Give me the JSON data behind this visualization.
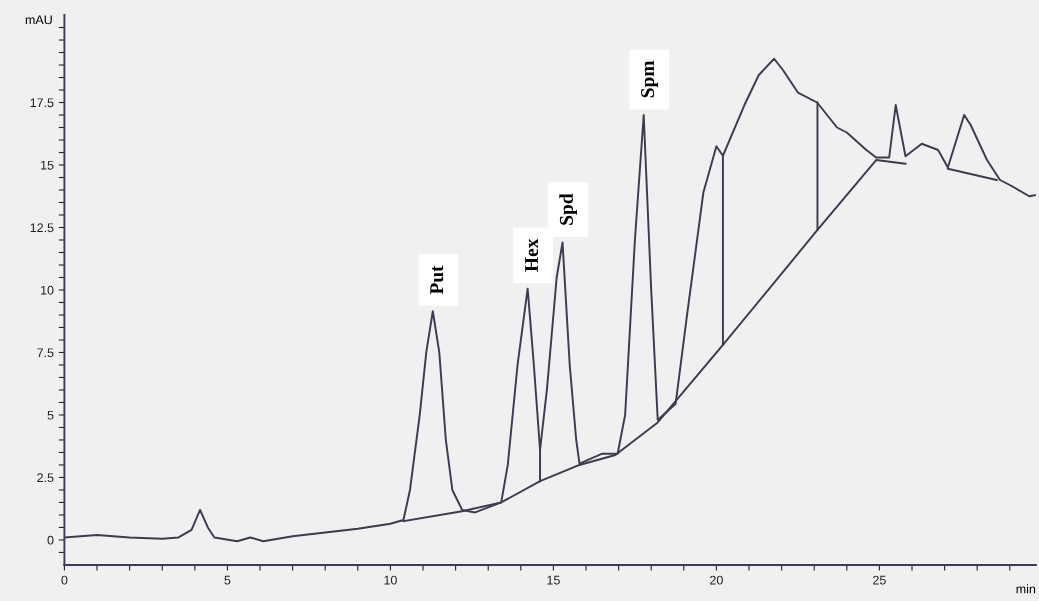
{
  "chart_data": {
    "type": "line",
    "xlabel": "min",
    "ylabel": "mAU",
    "xlim": [
      0,
      29.8
    ],
    "ylim": [
      -1,
      21
    ],
    "xticks": [
      0,
      {
        "value": 1,
        "label": null
      },
      {
        "value": 2,
        "label": null
      },
      {
        "value": 3,
        "label": null
      },
      {
        "value": 4,
        "label": null
      },
      5,
      {
        "value": 6,
        "label": null
      },
      {
        "value": 7,
        "label": null
      },
      {
        "value": 8,
        "label": null
      },
      {
        "value": 9,
        "label": null
      },
      10,
      {
        "value": 11,
        "label": null
      },
      {
        "value": 12,
        "label": null
      },
      {
        "value": 13,
        "label": null
      },
      {
        "value": 14,
        "label": null
      },
      15,
      {
        "value": 16,
        "label": null
      },
      {
        "value": 17,
        "label": null
      },
      {
        "value": 18,
        "label": null
      },
      {
        "value": 19,
        "label": null
      },
      20,
      {
        "value": 21,
        "label": null
      },
      {
        "value": 22,
        "label": null
      },
      {
        "value": 23,
        "label": null
      },
      {
        "value": 24,
        "label": null
      },
      25,
      {
        "value": 26,
        "label": null
      },
      {
        "value": 27,
        "label": null
      },
      {
        "value": 28,
        "label": null
      },
      {
        "value": 29,
        "label": null
      }
    ],
    "yticks": [
      {
        "value": -0.5,
        "label": null
      },
      0,
      {
        "value": 0.5,
        "label": null
      },
      {
        "value": 1,
        "label": null
      },
      {
        "value": 1.5,
        "label": null
      },
      {
        "value": 2,
        "label": null
      },
      2.5,
      {
        "value": 3,
        "label": null
      },
      {
        "value": 3.5,
        "label": null
      },
      {
        "value": 4,
        "label": null
      },
      {
        "value": 4.5,
        "label": null
      },
      5,
      {
        "value": 5.5,
        "label": null
      },
      {
        "value": 6,
        "label": null
      },
      {
        "value": 6.5,
        "label": null
      },
      {
        "value": 7,
        "label": null
      },
      7.5,
      {
        "value": 8,
        "label": null
      },
      {
        "value": 8.5,
        "label": null
      },
      {
        "value": 9,
        "label": null
      },
      {
        "value": 9.5,
        "label": null
      },
      10,
      {
        "value": 10.5,
        "label": null
      },
      {
        "value": 11,
        "label": null
      },
      {
        "value": 11.5,
        "label": null
      },
      {
        "value": 12,
        "label": null
      },
      12.5,
      {
        "value": 13,
        "label": null
      },
      {
        "value": 13.5,
        "label": null
      },
      {
        "value": 14,
        "label": null
      },
      {
        "value": 14.5,
        "label": null
      },
      15,
      {
        "value": 15.5,
        "label": null
      },
      {
        "value": 16,
        "label": null
      },
      {
        "value": 16.5,
        "label": null
      },
      {
        "value": 17,
        "label": null
      },
      17.5,
      {
        "value": 18,
        "label": null
      },
      {
        "value": 18.5,
        "label": null
      },
      {
        "value": 19,
        "label": null
      },
      {
        "value": 19.5,
        "label": null
      },
      {
        "value": 20,
        "label": null
      },
      {
        "value": 20.5,
        "label": null
      }
    ],
    "grid": false,
    "legend": false,
    "line_style": "solid",
    "series": [
      {
        "color": "#3c3c50",
        "x": [
          0,
          1,
          2,
          3,
          3.5,
          3.9,
          4.16,
          4.4,
          4.6,
          5.3,
          5.7,
          6.1,
          7,
          8,
          9,
          10,
          10.4,
          10.6,
          10.9,
          11.1,
          11.3,
          11.5,
          11.7,
          11.9,
          12.2,
          12.6,
          13,
          13.4,
          13.6,
          13.9,
          14.21,
          14.4,
          14.59,
          14.8,
          15.1,
          15.28,
          15.5,
          15.7,
          15.8,
          16.5,
          16.97,
          17.2,
          17.5,
          17.77,
          18.0,
          18.2,
          18.75,
          19.1,
          19.6,
          20.0,
          20.2,
          20.86,
          21.3,
          21.77,
          22.04,
          22.5,
          23.09,
          23.7,
          24.0,
          24.6,
          24.9,
          25.3,
          25.5,
          25.8,
          26.3,
          26.8,
          27.1,
          27.6,
          27.8,
          28.3,
          28.7,
          29.0,
          29.6,
          29.8
        ],
        "values": [
          0.1,
          0.2,
          0.1,
          0.05,
          0.1,
          0.4,
          1.2,
          0.5,
          0.1,
          -0.05,
          0.1,
          -0.05,
          0.15,
          0.3,
          0.45,
          0.65,
          0.8,
          2,
          5,
          7.5,
          9.15,
          7.5,
          4,
          2,
          1.2,
          1.1,
          1.3,
          1.5,
          3,
          7,
          10.05,
          7,
          3.6,
          6,
          10.5,
          11.9,
          7,
          4,
          3.05,
          3.45,
          3.45,
          5,
          12,
          17.0,
          10,
          4.8,
          5.45,
          9,
          13.9,
          15.75,
          15.37,
          17.4,
          18.6,
          19.25,
          18.8,
          17.9,
          17.5,
          16.5,
          16.3,
          15.6,
          15.3,
          15.3,
          17.4,
          15.35,
          15.85,
          15.6,
          14.9,
          17.0,
          16.6,
          15.2,
          14.4,
          14.2,
          13.75,
          13.8
        ]
      },
      {
        "color": "#3c3c50",
        "x": [
          10.4,
          12.2,
          13.4,
          14.59,
          15.8,
          16.9,
          18.2,
          20.2,
          23.1,
          24.9,
          25.8,
          26.5,
          27.1,
          28.6
        ],
        "values": [
          0.75,
          1.15,
          1.5,
          2.35,
          3.0,
          3.4,
          4.7,
          7.8,
          12.4,
          15.2,
          15.05,
          null,
          14.85,
          14.4
        ]
      },
      {
        "color": "#3c3c50",
        "x": [
          14.59,
          14.59,
          14.9,
          20.2,
          20.2,
          21.6,
          23.1,
          23.1
        ],
        "values": [
          2.35,
          3.6,
          null,
          7.8,
          15.4,
          null,
          12.4,
          17.5
        ]
      }
    ],
    "annotations": [
      {
        "text": "Put",
        "x": 11.3,
        "y": 9.15
      },
      {
        "text": "Hex",
        "x": 14.21,
        "y": 10.05
      },
      {
        "text": "Spd",
        "x": 15.28,
        "y": 11.9
      },
      {
        "text": "Spm",
        "x": 17.77,
        "y": 17.0
      }
    ]
  }
}
